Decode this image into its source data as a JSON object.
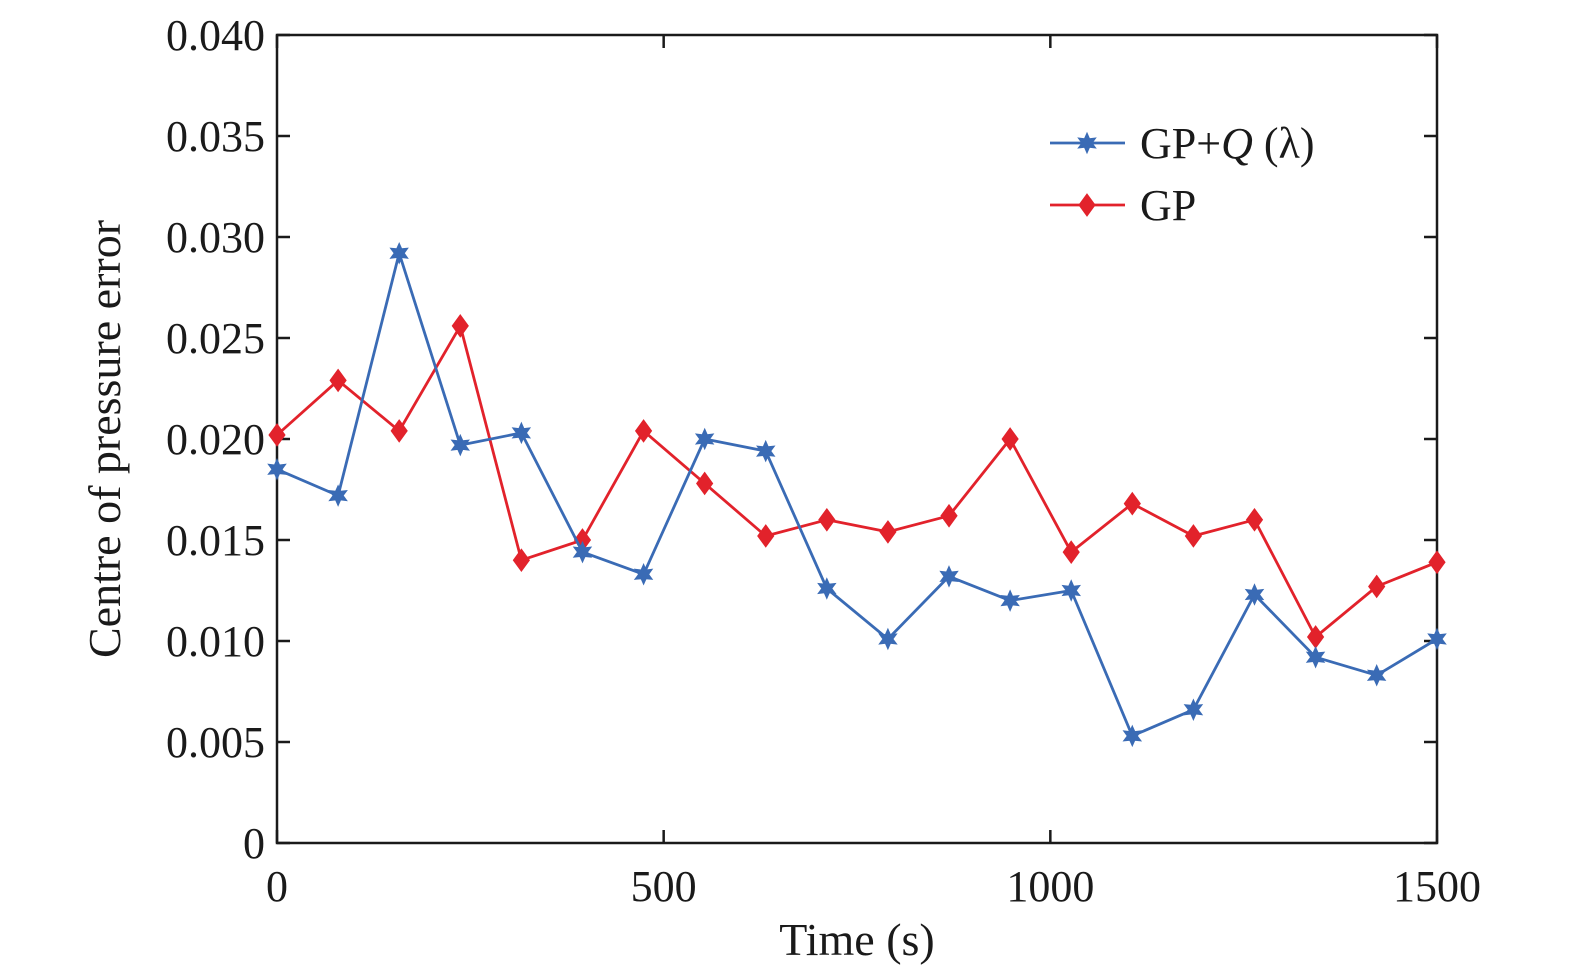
{
  "chart_data": {
    "type": "line",
    "title": "",
    "xlabel": "Time (s)",
    "ylabel": "Centre of pressure error",
    "xlim": [
      0,
      1500
    ],
    "ylim": [
      0,
      0.04
    ],
    "x_ticks": [
      "0",
      "500",
      "1000",
      "1500"
    ],
    "y_ticks": [
      "0",
      "0.005",
      "0.010",
      "0.015",
      "0.020",
      "0.025",
      "0.030",
      "0.035",
      "0.040"
    ],
    "legend_position": "top-right",
    "grid": false,
    "x": [
      0,
      79,
      158,
      237,
      316,
      395,
      474,
      553,
      632,
      711,
      790,
      869,
      948,
      1027,
      1106,
      1185,
      1264,
      1343,
      1422,
      1500
    ],
    "series": [
      {
        "name": "GP+Q (λ)",
        "name_prefix": "GP+",
        "name_italic": "Q",
        "name_suffix": " (λ)",
        "color": "#3a6bb5",
        "marker": "star",
        "values": [
          0.0185,
          0.0172,
          0.0292,
          0.0197,
          0.0203,
          0.0144,
          0.0133,
          0.02,
          0.0194,
          0.0126,
          0.0101,
          0.0132,
          0.012,
          0.0125,
          0.0053,
          0.0066,
          0.0123,
          0.0092,
          0.0083,
          0.0101
        ]
      },
      {
        "name": "GP",
        "color": "#e2222b",
        "marker": "diamond",
        "values": [
          0.0202,
          0.0229,
          0.0204,
          0.0256,
          0.014,
          0.015,
          0.0204,
          0.0178,
          0.0152,
          0.016,
          0.0154,
          0.0162,
          0.02,
          0.0144,
          0.0168,
          0.0152,
          0.016,
          0.0102,
          0.0127,
          0.0139
        ]
      }
    ]
  }
}
